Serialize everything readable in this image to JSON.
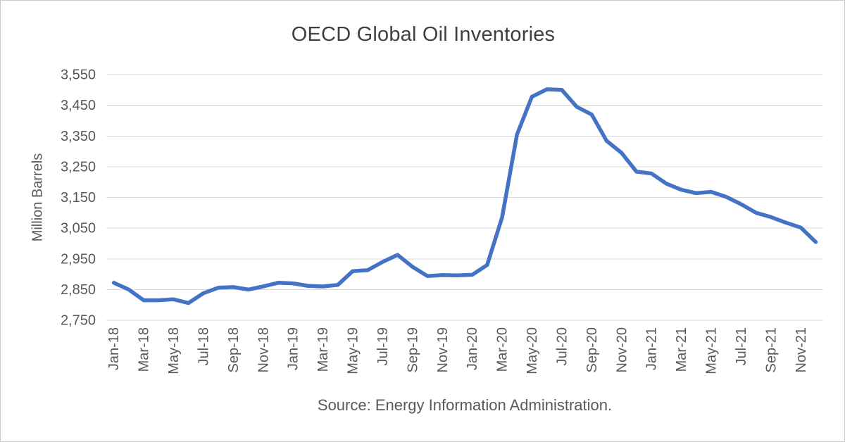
{
  "page": {
    "background": "#ffffff",
    "border_color": "#c9c9c9"
  },
  "chart_data": {
    "type": "line",
    "title": "OECD Global Oil Inventories",
    "ylabel": "Million Barrels",
    "xlabel": "",
    "source_note": "Source: Energy Information Administration.",
    "legend": "none",
    "grid": true,
    "ylim": [
      2750,
      3550
    ],
    "ytick_step": 100,
    "ytick_labels": [
      "2,750",
      "2,850",
      "2,950",
      "3,050",
      "3,150",
      "3,250",
      "3,350",
      "3,450",
      "3,550"
    ],
    "xtick_every": 2,
    "line_color": "#4472C4",
    "grid_color": "#D9D9D9",
    "text_color": "#595959",
    "title_color": "#404040",
    "categories": [
      "Jan-18",
      "Feb-18",
      "Mar-18",
      "Apr-18",
      "May-18",
      "Jun-18",
      "Jul-18",
      "Aug-18",
      "Sep-18",
      "Oct-18",
      "Nov-18",
      "Dec-18",
      "Jan-19",
      "Feb-19",
      "Mar-19",
      "Apr-19",
      "May-19",
      "Jun-19",
      "Jul-19",
      "Aug-19",
      "Sep-19",
      "Oct-19",
      "Nov-19",
      "Dec-19",
      "Jan-20",
      "Feb-20",
      "Mar-20",
      "Apr-20",
      "May-20",
      "Jun-20",
      "Jul-20",
      "Aug-20",
      "Sep-20",
      "Oct-20",
      "Nov-20",
      "Dec-20",
      "Jan-21",
      "Feb-21",
      "Mar-21",
      "Apr-21",
      "May-21",
      "Jun-21",
      "Jul-21",
      "Aug-21",
      "Sep-21",
      "Oct-21",
      "Nov-21",
      "Dec-21"
    ],
    "series": [
      {
        "name": "OECD Global Oil Inventories",
        "values": [
          2872,
          2850,
          2815,
          2815,
          2818,
          2806,
          2838,
          2856,
          2858,
          2850,
          2860,
          2872,
          2870,
          2862,
          2860,
          2865,
          2910,
          2913,
          2940,
          2963,
          2924,
          2894,
          2897,
          2896,
          2898,
          2930,
          3085,
          3355,
          3478,
          3502,
          3500,
          3445,
          3420,
          3334,
          3295,
          3234,
          3228,
          3195,
          3175,
          3164,
          3168,
          3152,
          3128,
          3100,
          3086,
          3068,
          3052,
          3005
        ]
      }
    ]
  }
}
